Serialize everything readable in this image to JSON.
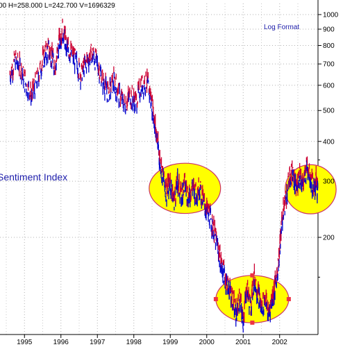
{
  "header": {
    "text": "00  H=258.000  L=242.700  V=1696329"
  },
  "chart_data": {
    "type": "line",
    "scale": "log",
    "y_ticks": [
      1000,
      900,
      800,
      700,
      600,
      500,
      400,
      300,
      200
    ],
    "y_tick_labels": [
      "1000",
      "900",
      "800",
      "700",
      "600",
      "500",
      "400",
      "300",
      "200"
    ],
    "ylim": [
      100,
      1000
    ],
    "x_ticks": [
      "1995",
      "1996",
      "1997",
      "1998",
      "1999",
      "2000",
      "2001",
      "2002"
    ],
    "grid": true,
    "annotations": {
      "log_format": "Log Format",
      "sentiment": "Sentiment Index"
    },
    "series_colors": {
      "up": "#cc0033",
      "down": "#0000cc"
    },
    "highlight_color": "#ffff00",
    "highlight_stroke": "#cc3366",
    "path": [
      [
        1994.6,
        650
      ],
      [
        1994.75,
        720
      ],
      [
        1994.9,
        680
      ],
      [
        1995.05,
        600
      ],
      [
        1995.2,
        560
      ],
      [
        1995.35,
        620
      ],
      [
        1995.5,
        720
      ],
      [
        1995.65,
        780
      ],
      [
        1995.75,
        740
      ],
      [
        1995.85,
        680
      ],
      [
        1995.95,
        820
      ],
      [
        1996.05,
        900
      ],
      [
        1996.15,
        800
      ],
      [
        1996.25,
        760
      ],
      [
        1996.4,
        720
      ],
      [
        1996.55,
        650
      ],
      [
        1996.7,
        710
      ],
      [
        1996.85,
        760
      ],
      [
        1997.0,
        700
      ],
      [
        1997.15,
        620
      ],
      [
        1997.3,
        570
      ],
      [
        1997.45,
        620
      ],
      [
        1997.6,
        560
      ],
      [
        1997.75,
        520
      ],
      [
        1997.9,
        560
      ],
      [
        1998.05,
        530
      ],
      [
        1998.2,
        600
      ],
      [
        1998.35,
        620
      ],
      [
        1998.45,
        560
      ],
      [
        1998.55,
        480
      ],
      [
        1998.62,
        420
      ],
      [
        1998.7,
        360
      ],
      [
        1998.8,
        310
      ],
      [
        1998.9,
        280
      ],
      [
        1999.0,
        300
      ],
      [
        1999.1,
        260
      ],
      [
        1999.2,
        300
      ],
      [
        1999.3,
        270
      ],
      [
        1999.4,
        300
      ],
      [
        1999.5,
        265
      ],
      [
        1999.6,
        290
      ],
      [
        1999.7,
        275
      ],
      [
        1999.8,
        290
      ],
      [
        1999.9,
        260
      ],
      [
        2000.0,
        245
      ],
      [
        2000.1,
        230
      ],
      [
        2000.2,
        210
      ],
      [
        2000.3,
        185
      ],
      [
        2000.4,
        165
      ],
      [
        2000.5,
        150
      ],
      [
        2000.6,
        140
      ],
      [
        2000.7,
        130
      ],
      [
        2000.8,
        115
      ],
      [
        2000.9,
        128
      ],
      [
        2001.0,
        110
      ],
      [
        2001.1,
        140
      ],
      [
        2001.2,
        120
      ],
      [
        2001.3,
        150
      ],
      [
        2001.4,
        135
      ],
      [
        2001.5,
        120
      ],
      [
        2001.6,
        130
      ],
      [
        2001.7,
        115
      ],
      [
        2001.8,
        130
      ],
      [
        2001.9,
        145
      ],
      [
        2002.0,
        180
      ],
      [
        2002.05,
        220
      ],
      [
        2002.15,
        260
      ],
      [
        2002.25,
        300
      ],
      [
        2002.35,
        320
      ],
      [
        2002.45,
        280
      ],
      [
        2002.55,
        320
      ],
      [
        2002.65,
        290
      ],
      [
        2002.75,
        340
      ],
      [
        2002.85,
        310
      ],
      [
        2002.95,
        280
      ],
      [
        2003.0,
        300
      ],
      [
        2003.05,
        275
      ]
    ],
    "circles": [
      {
        "cx": 1999.4,
        "cy": 285,
        "rx": 0.98,
        "ry_up": 345,
        "ry_down": 240
      },
      {
        "cx": 2001.25,
        "cy": 128,
        "rx": 1.0,
        "ry_up": 152,
        "ry_down": 108
      },
      {
        "cx": 2002.85,
        "cy": 283,
        "rx": 0.7,
        "ry_up": 335,
        "ry_down": 235
      }
    ],
    "markers": [
      {
        "x": 2001.25,
        "y": 152
      },
      {
        "x": 2000.25,
        "y": 128
      },
      {
        "x": 2002.25,
        "y": 128
      },
      {
        "x": 2001.25,
        "y": 108
      }
    ]
  }
}
